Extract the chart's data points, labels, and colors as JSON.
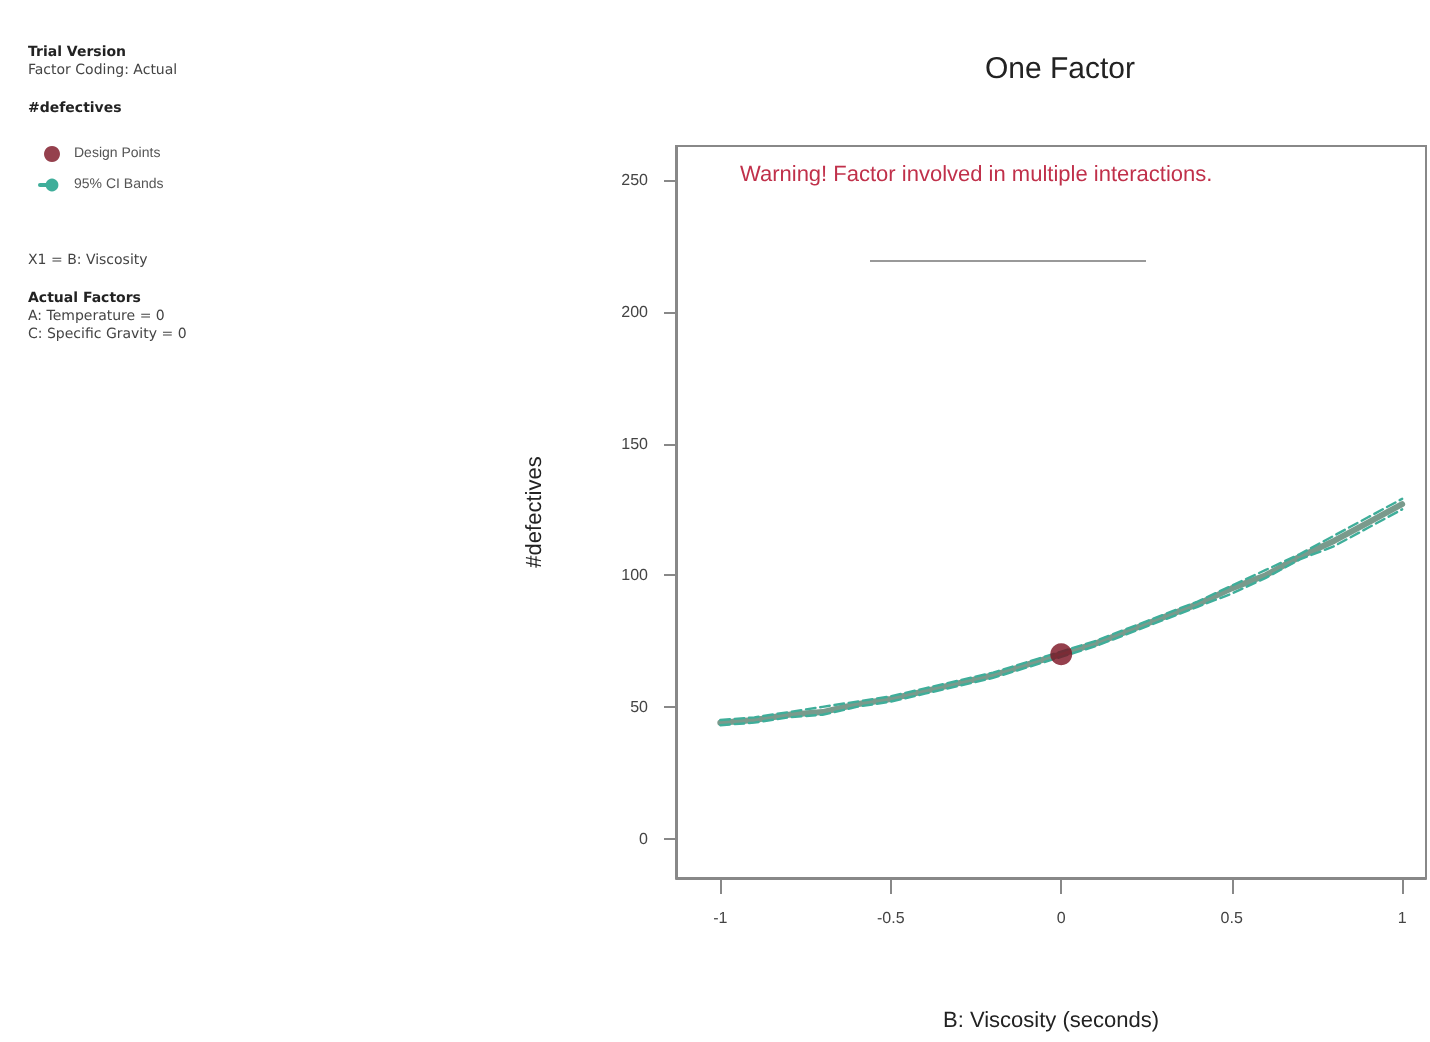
{
  "chart_data": {
    "type": "line",
    "title": "One Factor",
    "xlabel": "B: Viscosity (seconds)",
    "ylabel": "#defectives",
    "legend_title": "#defectives",
    "annotations": [
      "Warning! Factor involved in multiple interactions.",
      "Trial Version",
      "Factor Coding: Actual",
      "X1 = B: Viscosity",
      "Actual Factors",
      "A: Temperature = 0",
      "C: Specific Gravity = 0"
    ],
    "x": [
      -1,
      -0.9,
      -0.8,
      -0.7,
      -0.6,
      -0.5,
      -0.4,
      -0.3,
      -0.2,
      -0.1,
      0,
      0.1,
      0.2,
      0.3,
      0.4,
      0.5,
      0.6,
      0.7,
      0.8,
      0.9,
      1
    ],
    "series": [
      {
        "type": "scatter",
        "name": "Design Points",
        "color": "#7b1020",
        "marker": "circle",
        "x": [
          0
        ],
        "values": [
          70
        ]
      },
      {
        "color": "#7a9a8c",
        "values": [
          44,
          45,
          47,
          48,
          51,
          53,
          56,
          59,
          62,
          66,
          70,
          74,
          79,
          84,
          89,
          95,
          100,
          107,
          113,
          120,
          127
        ]
      },
      {
        "name": "95% CI Bands",
        "color": "#3fae9a",
        "line_style": "dashed",
        "values": [
          45,
          46,
          48,
          50,
          52,
          54,
          57,
          60,
          63,
          67,
          71,
          75,
          80,
          85,
          90,
          96,
          102,
          108,
          115,
          122,
          129
        ]
      },
      {
        "color": "#3fae9a",
        "line_style": "dashed",
        "values": [
          43,
          44,
          46,
          47,
          50,
          52,
          55,
          58,
          61,
          65,
          69,
          73,
          78,
          83,
          88,
          93,
          99,
          106,
          111,
          118,
          125
        ]
      }
    ],
    "xlim": [
      -1.13,
      1.07
    ],
    "ylim": [
      -15,
      263
    ],
    "xticks": [
      -1,
      -0.5,
      0,
      0.5,
      1
    ],
    "yticks": [
      0,
      50,
      100,
      150,
      200,
      250
    ],
    "grid": false,
    "legend": "left",
    "marker": "none",
    "line_style": "solid"
  }
}
